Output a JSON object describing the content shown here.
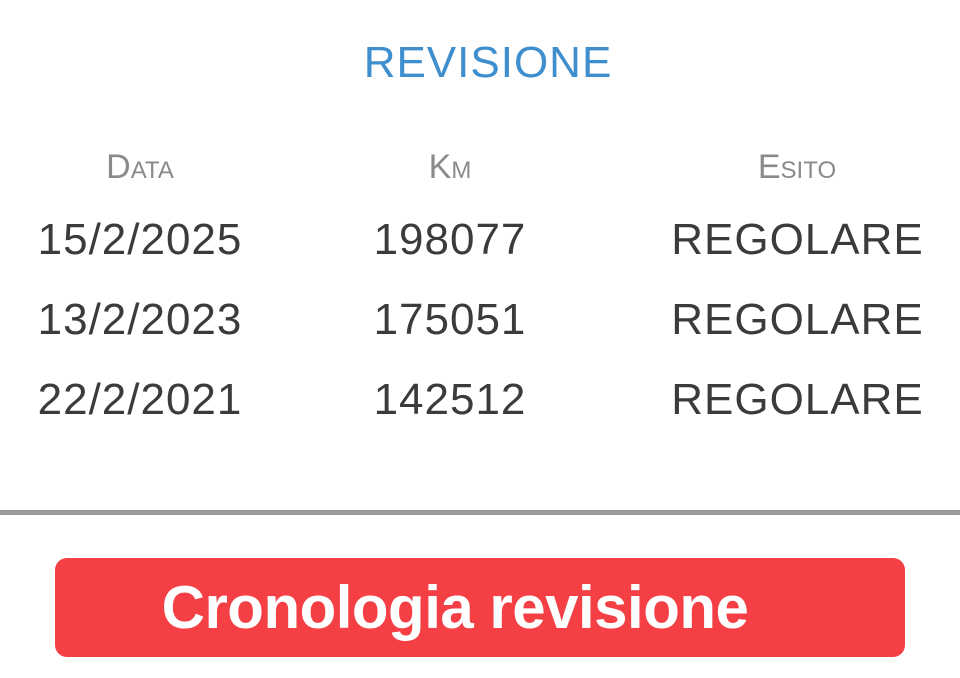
{
  "title": "REVISIONE",
  "table": {
    "headers": [
      "Data",
      "Km",
      "Esito"
    ],
    "rows": [
      [
        "15/2/2025",
        "198077",
        "REGOLARE"
      ],
      [
        "13/2/2023",
        "175051",
        "REGOLARE"
      ],
      [
        "22/2/2021",
        "142512",
        "REGOLARE"
      ]
    ]
  },
  "button": {
    "label": "Cronologia revisione",
    "color": "#f43f44"
  },
  "colors": {
    "title": "#3f8fce",
    "header": "#8a8a8a",
    "text": "#3b3b3b"
  }
}
